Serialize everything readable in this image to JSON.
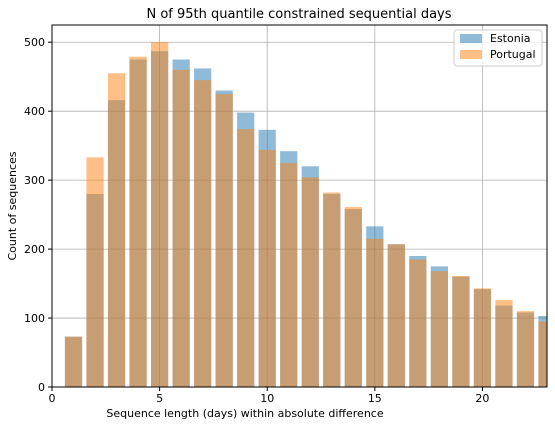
{
  "chart_data": {
    "type": "bar",
    "title": "N of 95th quantile constrained sequential days",
    "xlabel": "Sequence length (days) within absolute difference",
    "ylabel": "Count of sequences",
    "xlim": [
      0,
      23
    ],
    "ylim": [
      0,
      525
    ],
    "xticks": [
      0,
      5,
      10,
      15,
      20
    ],
    "yticks": [
      0,
      100,
      200,
      300,
      400,
      500
    ],
    "grid": true,
    "legend_position": "top-right",
    "x": [
      1,
      2,
      3,
      4,
      5,
      6,
      7,
      8,
      9,
      10,
      11,
      12,
      13,
      14,
      15,
      16,
      17,
      18,
      19,
      20,
      21,
      22,
      23
    ],
    "series": [
      {
        "name": "Estonia",
        "color": "#1f77b4",
        "values": [
          73,
          280,
          416,
          475,
          487,
          475,
          462,
          430,
          398,
          373,
          342,
          320,
          280,
          258,
          233,
          207,
          190,
          175,
          160,
          142,
          118,
          108,
          103
        ]
      },
      {
        "name": "Portugal",
        "color": "#ff7f0e",
        "values": [
          73,
          333,
          455,
          479,
          500,
          460,
          445,
          425,
          374,
          344,
          325,
          304,
          282,
          261,
          215,
          207,
          185,
          168,
          161,
          143,
          126,
          110,
          95
        ]
      }
    ]
  }
}
